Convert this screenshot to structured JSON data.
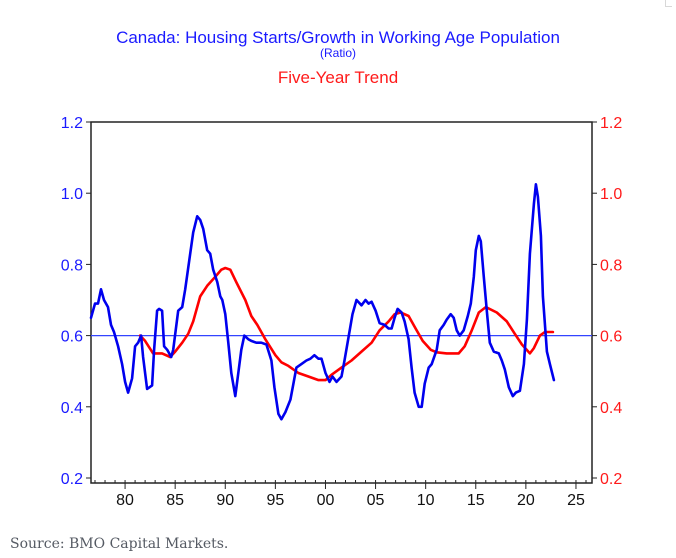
{
  "chart_data": {
    "type": "line",
    "title": "Canada: Housing Starts/Growth in Working Age Population",
    "subtitle": "(Ratio)",
    "subtitle2": "Five-Year Trend",
    "xlabel": "",
    "ylabel": "",
    "xlim": [
      1976.6,
      2026.6
    ],
    "ylim": [
      0.2,
      1.2
    ],
    "y2lim": [
      0.2,
      1.2
    ],
    "x_ticks": [
      1980,
      1985,
      1990,
      1995,
      2000,
      2005,
      2010,
      2015,
      2020,
      2025
    ],
    "x_tick_labels": [
      "80",
      "85",
      "90",
      "95",
      "00",
      "05",
      "10",
      "15",
      "20",
      "25"
    ],
    "y_ticks": [
      0.2,
      0.4,
      0.6,
      0.8,
      1.0,
      1.2
    ],
    "y_tick_labels": [
      "0.2",
      "0.4",
      "0.6",
      "0.8",
      "1.0",
      "1.2"
    ],
    "y2_tick_labels": [
      "0.2",
      "0.4",
      "0.6",
      "0.8",
      "1.0",
      "1.2"
    ],
    "reference_line": 0.6,
    "grid": false,
    "legend": "none",
    "colors": {
      "ratio": "#0000ee",
      "trend": "#ff0000",
      "left_axis": "#1a1aff",
      "right_axis": "#ff1a1a",
      "reference": "#3344ff"
    },
    "series": [
      {
        "name": "Housing Starts/Growth in Working Age Population (Ratio)",
        "axis": "left",
        "x": [
          1976.6,
          1977.0,
          1977.3,
          1977.6,
          1977.9,
          1978.3,
          1978.6,
          1978.9,
          1979.3,
          1979.7,
          1980.0,
          1980.3,
          1980.7,
          1981.0,
          1981.3,
          1981.6,
          1981.8,
          1982.2,
          1982.7,
          1982.9,
          1983.2,
          1983.4,
          1983.7,
          1983.9,
          1984.2,
          1984.6,
          1984.8,
          1985.3,
          1985.7,
          1986.0,
          1986.5,
          1986.8,
          1987.2,
          1987.5,
          1987.8,
          1988.2,
          1988.5,
          1988.8,
          1989.2,
          1989.5,
          1989.7,
          1990.0,
          1990.3,
          1990.6,
          1991.0,
          1991.3,
          1991.6,
          1991.9,
          1992.3,
          1992.6,
          1993.1,
          1993.6,
          1994.1,
          1994.6,
          1994.9,
          1995.3,
          1995.6,
          1996.0,
          1996.5,
          1996.8,
          1997.1,
          1997.6,
          1998.1,
          1998.5,
          1998.9,
          1999.3,
          1999.6,
          2000.0,
          2000.4,
          2000.7,
          2001.1,
          2001.6,
          2001.9,
          2002.3,
          2002.7,
          2003.1,
          2003.6,
          2004.0,
          2004.3,
          2004.6,
          2005.0,
          2005.4,
          2005.9,
          2006.3,
          2006.6,
          2006.9,
          2007.2,
          2007.6,
          2007.9,
          2008.3,
          2008.6,
          2008.9,
          2009.3,
          2009.6,
          2009.9,
          2010.3,
          2010.6,
          2011.1,
          2011.4,
          2011.8,
          2012.1,
          2012.5,
          2012.8,
          2013.1,
          2013.4,
          2013.8,
          2014.2,
          2014.5,
          2014.8,
          2015.0,
          2015.3,
          2015.5,
          2015.8,
          2016.1,
          2016.4,
          2016.8,
          2017.3,
          2017.6,
          2017.9,
          2018.3,
          2018.7,
          2019.0,
          2019.4,
          2019.8,
          2020.1,
          2020.4,
          2020.8,
          2021.0,
          2021.2,
          2021.5,
          2021.7,
          2022.1,
          2022.4,
          2022.8
        ],
        "values": [
          0.65,
          0.69,
          0.69,
          0.73,
          0.7,
          0.68,
          0.63,
          0.61,
          0.57,
          0.52,
          0.47,
          0.44,
          0.48,
          0.57,
          0.58,
          0.6,
          0.54,
          0.45,
          0.46,
          0.56,
          0.67,
          0.675,
          0.67,
          0.57,
          0.56,
          0.54,
          0.56,
          0.67,
          0.68,
          0.73,
          0.83,
          0.89,
          0.935,
          0.925,
          0.9,
          0.84,
          0.83,
          0.785,
          0.75,
          0.71,
          0.7,
          0.66,
          0.58,
          0.495,
          0.43,
          0.495,
          0.56,
          0.6,
          0.59,
          0.585,
          0.58,
          0.58,
          0.575,
          0.53,
          0.455,
          0.38,
          0.365,
          0.385,
          0.42,
          0.465,
          0.51,
          0.52,
          0.53,
          0.535,
          0.545,
          0.535,
          0.535,
          0.495,
          0.47,
          0.485,
          0.47,
          0.485,
          0.53,
          0.595,
          0.66,
          0.7,
          0.685,
          0.7,
          0.69,
          0.695,
          0.67,
          0.635,
          0.63,
          0.62,
          0.62,
          0.65,
          0.675,
          0.665,
          0.64,
          0.59,
          0.51,
          0.44,
          0.4,
          0.4,
          0.465,
          0.51,
          0.52,
          0.56,
          0.615,
          0.63,
          0.645,
          0.66,
          0.65,
          0.615,
          0.6,
          0.615,
          0.655,
          0.69,
          0.765,
          0.84,
          0.88,
          0.865,
          0.765,
          0.67,
          0.58,
          0.555,
          0.55,
          0.53,
          0.505,
          0.455,
          0.43,
          0.44,
          0.445,
          0.52,
          0.645,
          0.83,
          0.97,
          1.025,
          0.99,
          0.88,
          0.71,
          0.555,
          0.52,
          0.475
        ]
      },
      {
        "name": "Five-Year Trend",
        "axis": "right",
        "x": [
          1981.5,
          1982.0,
          1982.8,
          1983.7,
          1984.5,
          1985.0,
          1985.7,
          1986.3,
          1986.8,
          1987.5,
          1988.2,
          1989.0,
          1989.6,
          1990.0,
          1990.5,
          1991.1,
          1992.0,
          1992.6,
          1993.2,
          1993.8,
          1994.0,
          1995.0,
          1995.6,
          1996.3,
          1997.3,
          1998.3,
          1999.3,
          2000.0,
          2000.6,
          2001.6,
          2002.6,
          2003.6,
          2004.6,
          2005.4,
          2006.3,
          2006.9,
          2007.5,
          2008.3,
          2009.0,
          2009.7,
          2010.5,
          2011.1,
          2012.1,
          2013.3,
          2013.9,
          2014.6,
          2015.3,
          2016.0,
          2017.1,
          2018.1,
          2018.9,
          2019.6,
          2020.4,
          2020.8,
          2021.4,
          2021.9,
          2022.7
        ],
        "values": [
          0.6,
          0.585,
          0.55,
          0.55,
          0.54,
          0.555,
          0.58,
          0.605,
          0.64,
          0.71,
          0.74,
          0.765,
          0.785,
          0.79,
          0.785,
          0.75,
          0.7,
          0.655,
          0.63,
          0.6,
          0.59,
          0.545,
          0.525,
          0.515,
          0.495,
          0.485,
          0.475,
          0.475,
          0.49,
          0.51,
          0.53,
          0.555,
          0.58,
          0.615,
          0.64,
          0.66,
          0.665,
          0.655,
          0.62,
          0.585,
          0.56,
          0.553,
          0.55,
          0.55,
          0.57,
          0.615,
          0.665,
          0.68,
          0.665,
          0.64,
          0.605,
          0.575,
          0.55,
          0.565,
          0.6,
          0.61,
          0.61
        ]
      }
    ]
  },
  "source": "Source: BMO Capital Markets."
}
